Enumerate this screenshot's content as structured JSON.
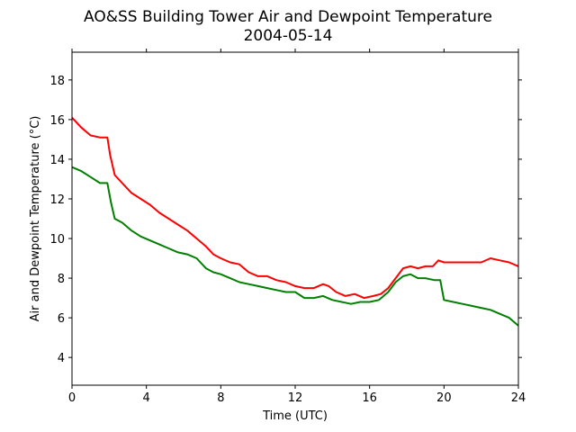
{
  "chart_data": {
    "type": "line",
    "title": "AO&SS Building Tower Air and Dewpoint Temperature",
    "subtitle": "2004-05-14",
    "xlabel": "Time (UTC)",
    "ylabel": "Air and Dewpoint Temperature (°C)",
    "xlim": [
      0,
      24
    ],
    "ylim": [
      2.6,
      19.4
    ],
    "xticks": [
      0,
      4,
      8,
      12,
      16,
      20,
      24
    ],
    "yticks": [
      4,
      6,
      8,
      10,
      12,
      14,
      16,
      18
    ],
    "grid": false,
    "legend": "none",
    "series": [
      {
        "color": "#ff0000",
        "x": [
          0,
          0.5,
          1.0,
          1.5,
          1.9,
          2.05,
          2.3,
          2.7,
          3.2,
          3.7,
          4.2,
          4.7,
          5.2,
          5.7,
          6.2,
          6.7,
          7.2,
          7.6,
          8.0,
          8.5,
          9.0,
          9.5,
          10.0,
          10.5,
          11.0,
          11.5,
          12.0,
          12.5,
          13.0,
          13.5,
          13.8,
          14.2,
          14.7,
          15.2,
          15.7,
          16.2,
          16.6,
          17.0,
          17.4,
          17.8,
          18.2,
          18.6,
          19.0,
          19.4,
          19.7,
          20.0,
          20.5,
          21.0,
          21.5,
          22.0,
          22.5,
          23.0,
          23.5,
          24.0
        ],
        "values": [
          16.1,
          15.6,
          15.2,
          15.1,
          15.1,
          14.2,
          13.2,
          12.8,
          12.3,
          12.0,
          11.7,
          11.3,
          11.0,
          10.7,
          10.4,
          10.0,
          9.6,
          9.2,
          9.0,
          8.8,
          8.7,
          8.3,
          8.1,
          8.1,
          7.9,
          7.8,
          7.6,
          7.5,
          7.5,
          7.7,
          7.6,
          7.3,
          7.1,
          7.2,
          7.0,
          7.1,
          7.2,
          7.5,
          8.0,
          8.5,
          8.6,
          8.5,
          8.6,
          8.6,
          8.9,
          8.8,
          8.8,
          8.8,
          8.8,
          8.8,
          9.0,
          8.9,
          8.8,
          8.6
        ]
      },
      {
        "color": "#008000",
        "x": [
          0,
          0.5,
          1.0,
          1.5,
          1.9,
          2.1,
          2.3,
          2.7,
          3.2,
          3.7,
          4.2,
          4.7,
          5.2,
          5.7,
          6.2,
          6.7,
          7.2,
          7.6,
          8.0,
          8.5,
          9.0,
          9.5,
          10.0,
          10.5,
          11.0,
          11.5,
          12.0,
          12.5,
          13.0,
          13.5,
          14.0,
          14.5,
          15.0,
          15.5,
          16.0,
          16.5,
          17.0,
          17.4,
          17.8,
          18.2,
          18.6,
          19.0,
          19.5,
          19.8,
          20.0,
          20.5,
          21.0,
          21.5,
          22.0,
          22.5,
          23.0,
          23.5,
          24.0
        ],
        "values": [
          13.6,
          13.4,
          13.1,
          12.8,
          12.8,
          11.8,
          11.0,
          10.8,
          10.4,
          10.1,
          9.9,
          9.7,
          9.5,
          9.3,
          9.2,
          9.0,
          8.5,
          8.3,
          8.2,
          8.0,
          7.8,
          7.7,
          7.6,
          7.5,
          7.4,
          7.3,
          7.3,
          7.0,
          7.0,
          7.1,
          6.9,
          6.8,
          6.7,
          6.8,
          6.8,
          6.9,
          7.3,
          7.8,
          8.1,
          8.2,
          8.0,
          8.0,
          7.9,
          7.9,
          6.9,
          6.8,
          6.7,
          6.6,
          6.5,
          6.4,
          6.2,
          6.0,
          5.6
        ]
      }
    ]
  }
}
